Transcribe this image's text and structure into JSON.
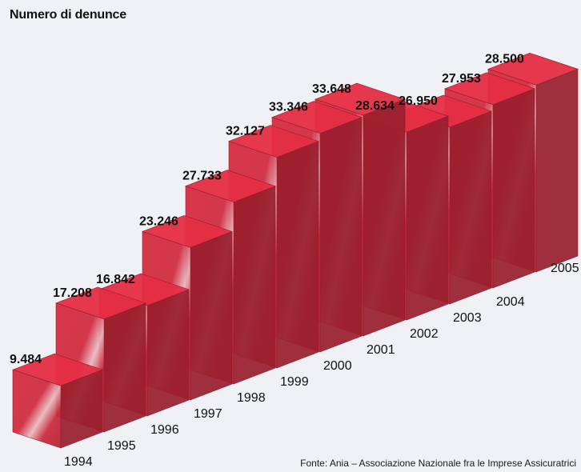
{
  "chart_data": {
    "type": "bar",
    "title": "Numero di denunce",
    "source": "Fonte: Ania – Associazione Nazionale fra le Imprese Assicuratrici",
    "categories": [
      "1994",
      "1995",
      "1996",
      "1997",
      "1998",
      "1999",
      "2000",
      "2001",
      "2002",
      "2003",
      "2004",
      "2005"
    ],
    "values": [
      9484,
      17208,
      16842,
      23246,
      27733,
      32127,
      33346,
      33648,
      28634,
      26950,
      27953,
      28500
    ],
    "value_labels": [
      "9.484",
      "17.208",
      "16.842",
      "23.246",
      "27.733",
      "32.127",
      "33.346",
      "33.648",
      "28.634",
      "26.950",
      "27.953",
      "28.500"
    ],
    "xlabel": "",
    "ylabel": "",
    "bar_color": "#d42a3e",
    "background_color": "#f0f1f4",
    "grid": false,
    "style": "3d"
  }
}
